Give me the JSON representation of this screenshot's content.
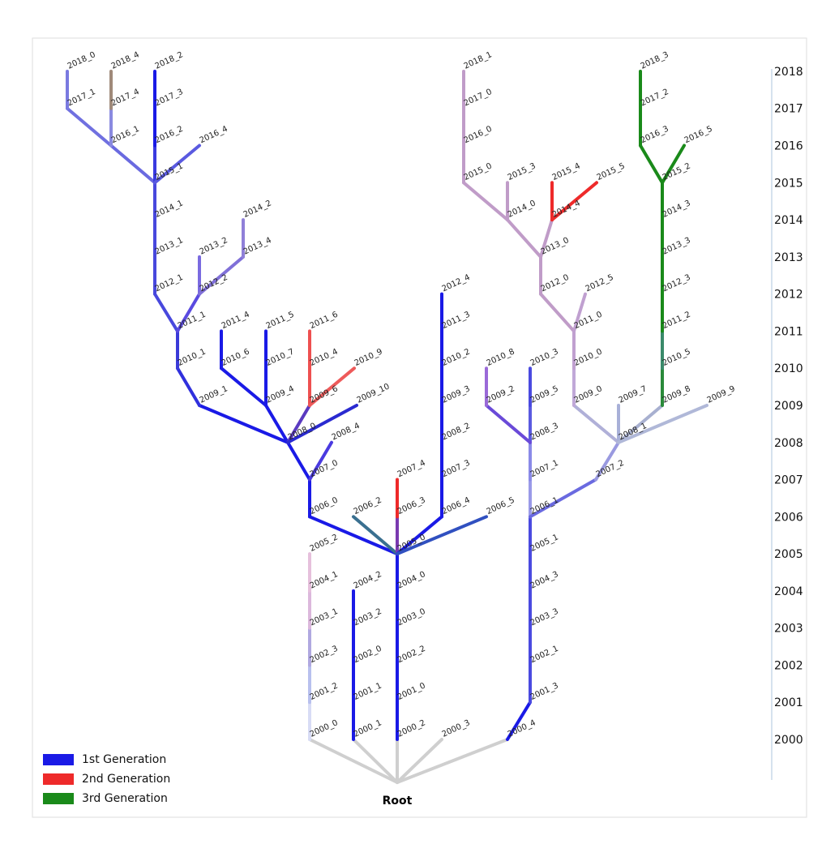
{
  "root": "Root",
  "years": [
    "2000",
    "2001",
    "2002",
    "2003",
    "2004",
    "2005",
    "2006",
    "2007",
    "2008",
    "2009",
    "2010",
    "2011",
    "2012",
    "2013",
    "2014",
    "2015",
    "2016",
    "2017",
    "2018"
  ],
  "legend": [
    {
      "label": "1st Generation",
      "color": "#1a1ae6"
    },
    {
      "label": "2nd Generation",
      "color": "#ee2a2a"
    },
    {
      "label": "3rd Generation",
      "color": "#1a8a1a"
    }
  ],
  "nodes": [
    "2000_0",
    "2000_1",
    "2000_2",
    "2000_3",
    "2000_4",
    "2001_2",
    "2002_3",
    "2003_1",
    "2004_1",
    "2005_2",
    "2001_1",
    "2002_0",
    "2003_2",
    "2004_2",
    "2001_0",
    "2002_2",
    "2003_0",
    "2004_0",
    "2005_0",
    "2006_0",
    "2006_2",
    "2006_3",
    "2006_4",
    "2006_5",
    "2007_4",
    "2007_3",
    "2008_2",
    "2009_3",
    "2010_2",
    "2011_3",
    "2012_4",
    "2007_0",
    "2008_0",
    "2008_4",
    "2009_1",
    "2009_4",
    "2009_6",
    "2009_10",
    "2010_6",
    "2011_4",
    "2010_7",
    "2011_5",
    "2010_4",
    "2011_6",
    "2010_9",
    "2010_1",
    "2011_1",
    "2012_1",
    "2013_1",
    "2014_1",
    "2015_1",
    "2012_2",
    "2013_2",
    "2013_4",
    "2014_2",
    "2016_1",
    "2017_1",
    "2018_0",
    "2017_4",
    "2018_4",
    "2016_2",
    "2017_3",
    "2018_2",
    "2016_4",
    "2001_3",
    "2002_1",
    "2003_3",
    "2004_3",
    "2005_1",
    "2006_1",
    "2007_1",
    "2008_3",
    "2009_5",
    "2010_3",
    "2009_2",
    "2010_8",
    "2007_2",
    "2008_1",
    "2009_0",
    "2010_0",
    "2011_0",
    "2012_0",
    "2013_0",
    "2014_0",
    "2015_0",
    "2016_0",
    "2017_0",
    "2018_1",
    "2012_5",
    "2014_4",
    "2015_3",
    "2015_4",
    "2015_5",
    "2009_7",
    "2009_8",
    "2010_5",
    "2011_2",
    "2012_3",
    "2013_3",
    "2014_3",
    "2015_2",
    "2009_9",
    "2016_3",
    "2017_2",
    "2018_3",
    "2016_5"
  ]
}
